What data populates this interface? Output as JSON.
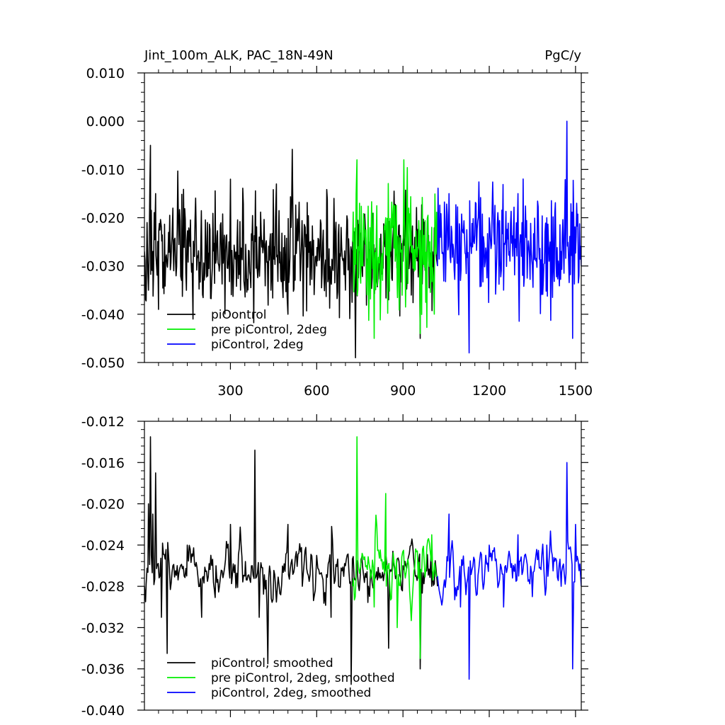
{
  "header": {
    "title": "Jint_100m_ALK, PAC_18N-49N",
    "units": "PgC/y"
  },
  "chart_data": [
    {
      "type": "line",
      "title": "Jint_100m_ALK, PAC_18N-49N",
      "units": "PgC/y",
      "xlim": [
        1,
        1520
      ],
      "ylim": [
        -0.05,
        0.01
      ],
      "x_ticks": [
        300,
        600,
        900,
        1200,
        1500
      ],
      "x_tick_labels": [
        "300",
        "600",
        "900",
        "1200",
        "1500"
      ],
      "y_ticks": [
        0.01,
        0.0,
        -0.01,
        -0.02,
        -0.03,
        -0.04,
        -0.05
      ],
      "y_tick_labels": [
        "0.010",
        "0.000",
        "-0.010",
        "-0.020",
        "-0.030",
        "-0.040",
        "-0.050"
      ],
      "grid": false,
      "legend_position": "bottom-left",
      "series": [
        {
          "name": "piOontrol",
          "color": "#000000",
          "x_start": 1,
          "x_end": 1020,
          "mean": -0.0275,
          "amplitude": 0.0055,
          "range_min": -0.049,
          "range_max": -0.005,
          "samples": [
            [
              1,
              -0.027
            ],
            [
              5,
              -0.037
            ],
            [
              10,
              -0.021
            ],
            [
              15,
              -0.035
            ],
            [
              20,
              -0.013
            ],
            [
              22,
              -0.005
            ],
            [
              30,
              -0.027
            ],
            [
              40,
              -0.015
            ],
            [
              50,
              -0.039
            ],
            [
              60,
              -0.022
            ],
            [
              80,
              -0.03
            ],
            [
              100,
              -0.018
            ],
            [
              130,
              -0.033
            ],
            [
              170,
              -0.041
            ],
            [
              220,
              -0.021
            ],
            [
              260,
              -0.03
            ],
            [
              300,
              -0.012
            ],
            [
              350,
              -0.035
            ],
            [
              400,
              -0.024
            ],
            [
              460,
              -0.013
            ],
            [
              500,
              -0.04
            ],
            [
              560,
              -0.022
            ],
            [
              600,
              -0.03
            ],
            [
              660,
              -0.016
            ],
            [
              700,
              -0.035
            ],
            [
              735,
              -0.049
            ],
            [
              780,
              -0.025
            ],
            [
              850,
              -0.037
            ],
            [
              900,
              -0.029
            ],
            [
              960,
              -0.045
            ],
            [
              1000,
              -0.026
            ],
            [
              1020,
              -0.03
            ]
          ]
        },
        {
          "name": "pre piControl, 2deg",
          "color": "#00ee00",
          "x_start": 725,
          "x_end": 1020,
          "mean": -0.0265,
          "amplitude": 0.0065,
          "range_min": -0.046,
          "range_max": -0.008,
          "samples": [
            [
              725,
              -0.025
            ],
            [
              740,
              -0.008
            ],
            [
              760,
              -0.03
            ],
            [
              800,
              -0.045
            ],
            [
              840,
              -0.02
            ],
            [
              880,
              -0.034
            ],
            [
              920,
              -0.018
            ],
            [
              960,
              -0.044
            ],
            [
              1000,
              -0.022
            ],
            [
              1020,
              -0.028
            ]
          ]
        },
        {
          "name": "piControl, 2deg",
          "color": "#0000ff",
          "x_start": 1020,
          "x_end": 1520,
          "mean": -0.0255,
          "amplitude": 0.0055,
          "range_min": -0.048,
          "range_max": 0.0,
          "samples": [
            [
              1020,
              -0.03
            ],
            [
              1060,
              -0.015
            ],
            [
              1100,
              -0.033
            ],
            [
              1130,
              -0.048
            ],
            [
              1200,
              -0.02
            ],
            [
              1250,
              -0.035
            ],
            [
              1300,
              -0.015
            ],
            [
              1350,
              -0.03
            ],
            [
              1400,
              -0.02
            ],
            [
              1450,
              -0.027
            ],
            [
              1470,
              0.0
            ],
            [
              1490,
              -0.045
            ],
            [
              1520,
              -0.03
            ]
          ]
        }
      ]
    },
    {
      "type": "line",
      "xlim": [
        1,
        1520
      ],
      "ylim": [
        -0.04,
        -0.012
      ],
      "x_ticks": [
        300,
        600,
        900,
        1200,
        1500
      ],
      "x_tick_labels": [
        "",
        "",
        "",
        "",
        ""
      ],
      "y_ticks": [
        -0.012,
        -0.016,
        -0.02,
        -0.024,
        -0.028,
        -0.032,
        -0.036,
        -0.04
      ],
      "y_tick_labels": [
        "-0.012",
        "-0.016",
        "-0.020",
        "-0.024",
        "-0.028",
        "-0.032",
        "-0.036",
        "-0.040"
      ],
      "grid": false,
      "legend_position": "bottom-left",
      "series": [
        {
          "name": "piControl, smoothed",
          "color": "#000000",
          "x_start": 1,
          "x_end": 1020,
          "mean": -0.0265,
          "amplitude": 0.0022,
          "range_min": -0.0375,
          "range_max": -0.0135,
          "samples": [
            [
              1,
              -0.028
            ],
            [
              5,
              -0.0295
            ],
            [
              15,
              -0.02
            ],
            [
              22,
              -0.0135
            ],
            [
              30,
              -0.021
            ],
            [
              40,
              -0.017
            ],
            [
              60,
              -0.031
            ],
            [
              80,
              -0.0345
            ],
            [
              100,
              -0.026
            ],
            [
              150,
              -0.024
            ],
            [
              200,
              -0.031
            ],
            [
              250,
              -0.026
            ],
            [
              300,
              -0.022
            ],
            [
              350,
              -0.027
            ],
            [
              385,
              -0.0148
            ],
            [
              400,
              -0.031
            ],
            [
              430,
              -0.0355
            ],
            [
              500,
              -0.022
            ],
            [
              550,
              -0.028
            ],
            [
              600,
              -0.025
            ],
            [
              650,
              -0.031
            ],
            [
              700,
              -0.026
            ],
            [
              720,
              -0.0375
            ],
            [
              780,
              -0.028
            ],
            [
              850,
              -0.034
            ],
            [
              900,
              -0.026
            ],
            [
              960,
              -0.036
            ],
            [
              1000,
              -0.028
            ],
            [
              1020,
              -0.028
            ]
          ]
        },
        {
          "name": "pre piControl, 2deg, smoothed",
          "color": "#00ee00",
          "x_start": 725,
          "x_end": 1020,
          "mean": -0.0265,
          "amplitude": 0.0028,
          "range_min": -0.035,
          "range_max": -0.0135,
          "samples": [
            [
              725,
              -0.028
            ],
            [
              740,
              -0.0135
            ],
            [
              760,
              -0.025
            ],
            [
              800,
              -0.03
            ],
            [
              840,
              -0.019
            ],
            [
              880,
              -0.032
            ],
            [
              920,
              -0.026
            ],
            [
              960,
              -0.035
            ],
            [
              1000,
              -0.023
            ],
            [
              1020,
              -0.027
            ]
          ]
        },
        {
          "name": "piControl, 2deg, smoothed",
          "color": "#0000ff",
          "x_start": 1020,
          "x_end": 1520,
          "mean": -0.0262,
          "amplitude": 0.0024,
          "range_min": -0.037,
          "range_max": -0.016,
          "samples": [
            [
              1020,
              -0.027
            ],
            [
              1060,
              -0.021
            ],
            [
              1100,
              -0.03
            ],
            [
              1130,
              -0.037
            ],
            [
              1200,
              -0.024
            ],
            [
              1250,
              -0.03
            ],
            [
              1300,
              -0.023
            ],
            [
              1350,
              -0.029
            ],
            [
              1400,
              -0.024
            ],
            [
              1450,
              -0.028
            ],
            [
              1470,
              -0.016
            ],
            [
              1490,
              -0.036
            ],
            [
              1500,
              -0.022
            ],
            [
              1520,
              -0.028
            ]
          ]
        }
      ]
    }
  ]
}
